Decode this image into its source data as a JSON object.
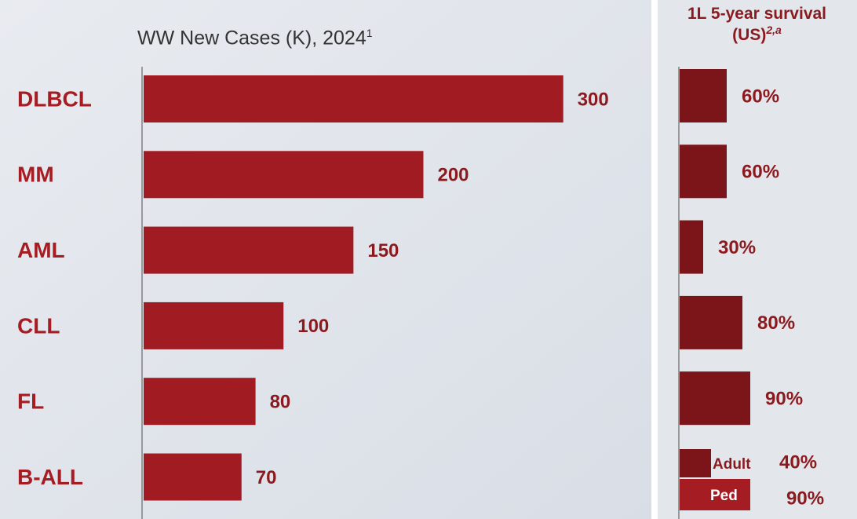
{
  "chart_data": [
    {
      "type": "bar",
      "orientation": "horizontal",
      "title": "WW New Cases (K), 2024",
      "title_superscript": "1",
      "categories": [
        "DLBCL",
        "MM",
        "AML",
        "CLL",
        "FL",
        "B-ALL"
      ],
      "values": [
        300,
        200,
        150,
        100,
        80,
        70
      ],
      "color": "#a01c22",
      "xlim": [
        0,
        340
      ]
    },
    {
      "type": "bar",
      "orientation": "horizontal",
      "title": "1L 5-year survival (US)",
      "title_superscript": "2,a",
      "values": [
        60,
        60,
        30,
        80,
        90
      ],
      "value_labels": [
        "60%",
        "60%",
        "30%",
        "80%",
        "90%"
      ],
      "color": "#7b1519",
      "sub_bars": [
        {
          "name": "Adult",
          "value": 40,
          "value_label": "40%",
          "color": "#7b1519"
        },
        {
          "name": "Ped",
          "value": 90,
          "value_label": "90%",
          "color": "#a61c23"
        }
      ],
      "xlim": [
        0,
        100
      ]
    }
  ]
}
